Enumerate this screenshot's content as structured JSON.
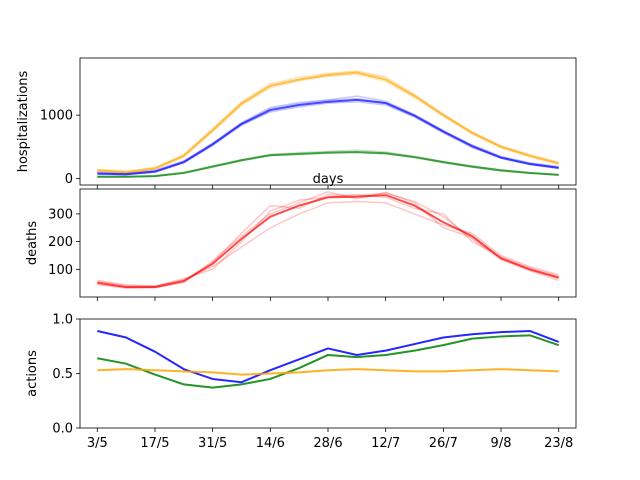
{
  "chart_data": [
    {
      "type": "line",
      "ylabel": "hospitalizations",
      "xlabel": "days",
      "ylim": [
        -100,
        1900
      ],
      "yticks": [
        0,
        1000
      ],
      "x": [
        0,
        1,
        2,
        3,
        4,
        5,
        6,
        7,
        8,
        9,
        10,
        11,
        12,
        13,
        14,
        15,
        16
      ],
      "series": [
        {
          "name": "orange",
          "color": "#ffa500",
          "values": [
            130,
            100,
            160,
            360,
            760,
            1180,
            1460,
            1560,
            1630,
            1670,
            1560,
            1300,
            1000,
            720,
            500,
            360,
            240
          ],
          "runs": [
            [
              150,
              120,
              180,
              380,
              780,
              1200,
              1500,
              1580,
              1650,
              1700,
              1600,
              1330,
              1020,
              740,
              520,
              380,
              260
            ],
            [
              110,
              90,
              140,
              340,
              740,
              1150,
              1430,
              1540,
              1610,
              1640,
              1530,
              1270,
              980,
              700,
              480,
              340,
              220
            ],
            [
              140,
              110,
              170,
              370,
              790,
              1210,
              1480,
              1600,
              1660,
              1690,
              1590,
              1320,
              1010,
              730,
              510,
              370,
              250
            ]
          ]
        },
        {
          "name": "blue",
          "color": "#0000ff",
          "values": [
            80,
            70,
            110,
            260,
            540,
            860,
            1080,
            1160,
            1210,
            1240,
            1190,
            990,
            740,
            510,
            330,
            230,
            170
          ],
          "runs": [
            [
              100,
              85,
              130,
              280,
              560,
              880,
              1120,
              1200,
              1240,
              1300,
              1220,
              1010,
              760,
              530,
              350,
              250,
              190
            ],
            [
              70,
              60,
              100,
              250,
              520,
              840,
              1050,
              1130,
              1190,
              1210,
              1160,
              970,
              720,
              490,
              320,
              220,
              160
            ],
            [
              90,
              75,
              120,
              270,
              550,
              870,
              1100,
              1180,
              1230,
              1260,
              1200,
              1000,
              750,
              520,
              340,
              240,
              180
            ]
          ]
        },
        {
          "name": "green",
          "color": "#008000",
          "values": [
            30,
            30,
            40,
            90,
            190,
            290,
            370,
            390,
            410,
            420,
            400,
            340,
            260,
            190,
            130,
            90,
            60
          ],
          "runs": [
            [
              35,
              35,
              45,
              100,
              200,
              300,
              380,
              410,
              430,
              450,
              420,
              350,
              270,
              200,
              140,
              95,
              65
            ],
            [
              25,
              25,
              35,
              85,
              180,
              280,
              360,
              380,
              400,
              410,
              390,
              330,
              250,
              180,
              120,
              85,
              55
            ]
          ]
        }
      ]
    },
    {
      "type": "line",
      "ylabel": "deaths",
      "ylim": [
        0,
        390
      ],
      "yticks": [
        100,
        200,
        300
      ],
      "x": [
        0,
        1,
        2,
        3,
        4,
        5,
        6,
        7,
        8,
        9,
        10,
        11,
        12,
        13,
        14,
        15,
        16
      ],
      "series": [
        {
          "name": "red",
          "color": "#ff0000",
          "values": [
            52,
            36,
            36,
            58,
            120,
            210,
            290,
            330,
            360,
            362,
            368,
            330,
            270,
            220,
            140,
            100,
            70
          ],
          "runs": [
            [
              60,
              44,
              38,
              62,
              110,
              180,
              250,
              300,
              340,
              345,
              340,
              300,
              260,
              230,
              150,
              110,
              80
            ],
            [
              48,
              34,
              34,
              52,
              125,
              230,
              330,
              320,
              370,
              365,
              375,
              345,
              290,
              210,
              135,
              95,
              60
            ],
            [
              56,
              40,
              40,
              66,
              100,
              200,
              310,
              350,
              360,
              370,
              360,
              320,
              300,
              200,
              145,
              105,
              75
            ],
            [
              45,
              32,
              34,
              55,
              130,
              220,
              300,
              340,
              380,
              355,
              378,
              340,
              250,
              215,
              138,
              98,
              68
            ]
          ]
        }
      ]
    },
    {
      "type": "line",
      "ylabel": "actions",
      "ylim": [
        0.0,
        1.0
      ],
      "yticks": [
        "0.0",
        "0.5",
        "1.0"
      ],
      "x": [
        0,
        1,
        2,
        3,
        4,
        5,
        6,
        7,
        8,
        9,
        10,
        11,
        12,
        13,
        14,
        15,
        16
      ],
      "tick_labels": [
        "3/5",
        "17/5",
        "31/5",
        "14/6",
        "28/6",
        "12/7",
        "26/7",
        "9/8",
        "23/8"
      ],
      "series": [
        {
          "name": "blue",
          "color": "#0000ff",
          "values": [
            0.89,
            0.83,
            0.7,
            0.54,
            0.45,
            0.42,
            0.53,
            0.63,
            0.73,
            0.67,
            0.71,
            0.77,
            0.83,
            0.86,
            0.88,
            0.89,
            0.79
          ]
        },
        {
          "name": "green",
          "color": "#008000",
          "values": [
            0.64,
            0.59,
            0.49,
            0.4,
            0.37,
            0.4,
            0.45,
            0.55,
            0.67,
            0.65,
            0.67,
            0.71,
            0.76,
            0.82,
            0.84,
            0.85,
            0.76
          ]
        },
        {
          "name": "orange",
          "color": "#ffa500",
          "values": [
            0.53,
            0.54,
            0.53,
            0.52,
            0.51,
            0.49,
            0.5,
            0.51,
            0.53,
            0.54,
            0.53,
            0.52,
            0.52,
            0.53,
            0.54,
            0.53,
            0.52
          ]
        }
      ]
    }
  ]
}
